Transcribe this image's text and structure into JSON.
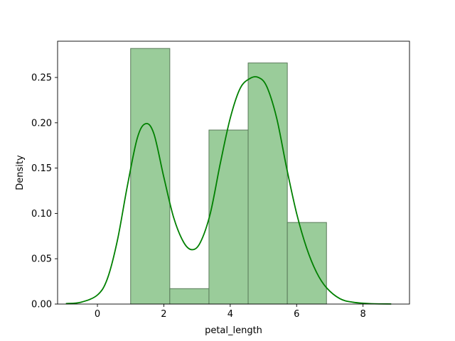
{
  "chart_data": {
    "type": "bar",
    "xlabel": "petal_length",
    "ylabel": "Density",
    "xlim": [
      -1.2,
      9.4
    ],
    "ylim": [
      0,
      0.29
    ],
    "x_ticks": [
      0,
      2,
      4,
      6,
      8
    ],
    "x_tick_labels": [
      "0",
      "2",
      "4",
      "6",
      "8"
    ],
    "y_ticks": [
      0.0,
      0.05,
      0.1,
      0.15,
      0.2,
      0.25
    ],
    "y_tick_labels": [
      "0.00",
      "0.05",
      "0.10",
      "0.15",
      "0.20",
      "0.25"
    ],
    "grid": false,
    "histogram": {
      "bin_edges": [
        1.0,
        2.18,
        3.36,
        4.54,
        5.72,
        6.9
      ],
      "densities": [
        0.282,
        0.017,
        0.192,
        0.266,
        0.09
      ],
      "fill_color": "#9acc9a",
      "edge_color": "#5a7a5a"
    },
    "kde": {
      "color": "#008000",
      "x": [
        -0.95,
        -0.5,
        0,
        0.3,
        0.6,
        0.9,
        1.2,
        1.45,
        1.7,
        2.0,
        2.3,
        2.6,
        2.85,
        3.1,
        3.4,
        3.7,
        4.0,
        4.3,
        4.6,
        4.85,
        5.1,
        5.4,
        5.7,
        6.0,
        6.3,
        6.6,
        6.9,
        7.3,
        7.7,
        8.2,
        8.85
      ],
      "y": [
        0.0005,
        0.002,
        0.01,
        0.028,
        0.07,
        0.13,
        0.183,
        0.199,
        0.188,
        0.14,
        0.095,
        0.068,
        0.06,
        0.068,
        0.1,
        0.155,
        0.205,
        0.238,
        0.249,
        0.25,
        0.24,
        0.205,
        0.15,
        0.1,
        0.062,
        0.035,
        0.018,
        0.006,
        0.002,
        0.0005,
        0.0001
      ]
    }
  }
}
